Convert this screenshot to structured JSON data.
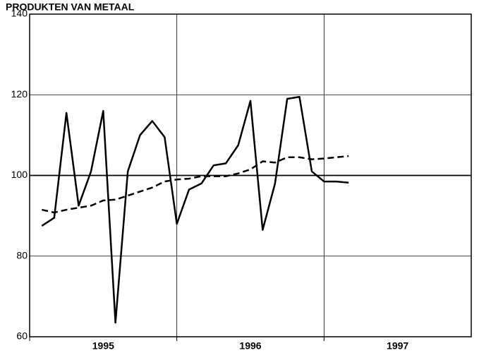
{
  "chart_data": {
    "type": "line",
    "title": "PRODUKTEN VAN METAAL",
    "x": [
      1995.083,
      1995.167,
      1995.25,
      1995.333,
      1995.417,
      1995.5,
      1995.583,
      1995.667,
      1995.75,
      1995.833,
      1995.917,
      1996,
      1996.083,
      1996.167,
      1996.25,
      1996.333,
      1996.417,
      1996.5,
      1996.583,
      1996.667,
      1996.75,
      1996.833,
      1996.917,
      1997,
      1997.083,
      1997.167
    ],
    "series": [
      {
        "color": "#000000",
        "dash": "solid",
        "values": [
          87.5,
          89.5,
          115.5,
          92.5,
          101,
          116,
          63.5,
          101,
          110,
          113.5,
          109.5,
          88,
          96.5,
          98,
          102.5,
          103,
          107.5,
          118.5,
          86.5,
          98,
          119,
          119.5,
          101,
          98.5,
          98.5,
          98.2
        ]
      },
      {
        "color": "#000000",
        "dash": "dashed",
        "values": [
          91.5,
          90.8,
          91.5,
          92,
          92.5,
          93.8,
          94,
          95,
          96,
          97,
          98.5,
          99,
          99.2,
          99.8,
          99.8,
          99.8,
          100.5,
          101.5,
          103.5,
          103.2,
          104.5,
          104.5,
          104,
          104.2,
          104.5,
          104.8
        ]
      }
    ],
    "xlim": [
      1995,
      1998
    ],
    "xticks": [
      1995,
      1996,
      1997
    ],
    "ylim": [
      60,
      140
    ],
    "yticks": [
      60,
      80,
      100,
      120,
      140
    ],
    "baseline": 100,
    "grid": true
  }
}
